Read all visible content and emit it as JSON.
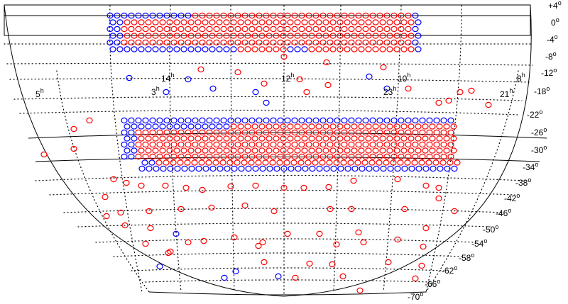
{
  "colors": {
    "filled": "#ff0000",
    "open": "#0000ff",
    "grid": "#000000",
    "background": "#ffffff"
  },
  "labels": {
    "ra": [
      {
        "h": "14",
        "u": "h"
      },
      {
        "h": "12",
        "u": "h"
      },
      {
        "h": "10",
        "u": "h"
      },
      {
        "h": "8",
        "u": "h"
      },
      {
        "h": "5",
        "u": "h"
      },
      {
        "h": "3",
        "u": "h"
      },
      {
        "h": "23",
        "u": "h"
      },
      {
        "h": "21",
        "u": "h"
      }
    ],
    "dec": [
      {
        "v": "+4",
        "u": "o"
      },
      {
        "v": "0",
        "u": "o"
      },
      {
        "v": "-4",
        "u": "o"
      },
      {
        "v": "-8",
        "u": "o"
      },
      {
        "v": "-12",
        "u": "o"
      },
      {
        "v": "-18",
        "u": "o"
      },
      {
        "v": "-22",
        "u": "o"
      },
      {
        "v": "-26",
        "u": "o"
      },
      {
        "v": "-30",
        "u": "o"
      },
      {
        "v": "-34",
        "u": "o"
      },
      {
        "v": "-38",
        "u": "o"
      },
      {
        "v": "-42",
        "u": "o"
      },
      {
        "v": "-46",
        "u": "o"
      },
      {
        "v": "-50",
        "u": "o"
      },
      {
        "v": "-54",
        "u": "o"
      },
      {
        "v": "-58",
        "u": "o"
      },
      {
        "v": "-62",
        "u": "o"
      },
      {
        "v": "-66",
        "u": "o"
      },
      {
        "v": "-70",
        "u": "o"
      }
    ]
  }
}
